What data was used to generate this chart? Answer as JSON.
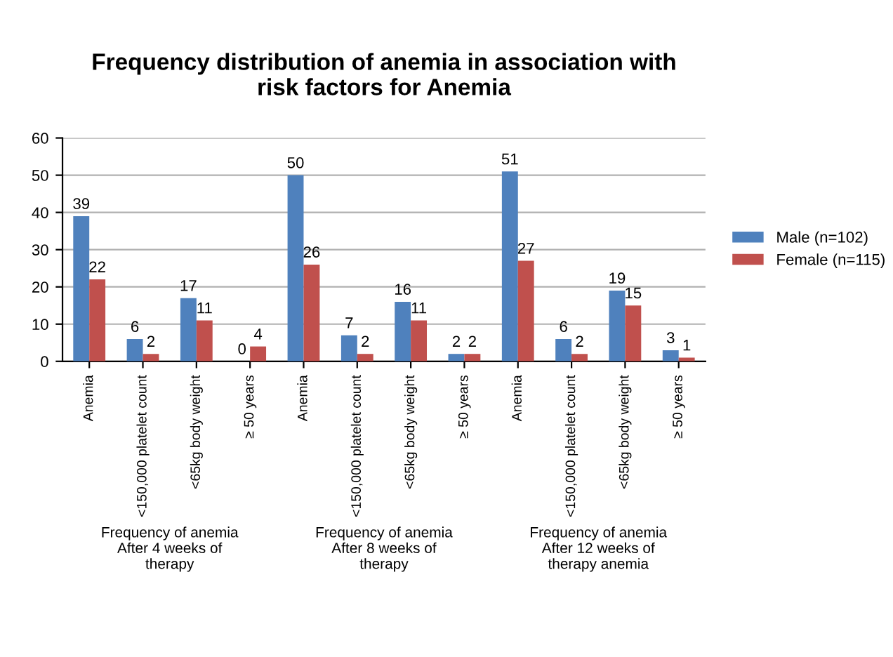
{
  "chart_data": {
    "type": "bar",
    "title": "Frequency distribution of anemia in association with\nrisk factors for Anemia",
    "categories": [
      "Anemia",
      "<150,000 platelet count",
      "<65kg body weight",
      "≥ 50 years",
      "Anemia",
      "<150,000 platelet count",
      "<65kg body weight",
      "≥ 50 years",
      "Anemia",
      "<150,000 platelet count",
      "<65kg body weight",
      "≥ 50 years"
    ],
    "series": [
      {
        "name": "Male (n=102)",
        "color": "#4f81bd",
        "values": [
          39,
          6,
          17,
          0,
          50,
          7,
          16,
          2,
          51,
          6,
          19,
          3
        ]
      },
      {
        "name": "Female (n=115)",
        "color": "#c0504d",
        "values": [
          22,
          2,
          11,
          4,
          26,
          2,
          11,
          2,
          27,
          2,
          15,
          1
        ]
      }
    ],
    "annotations": [
      "Frequency of anemia\nAfter 4 weeks of\ntherapy",
      "Frequency of anemia\nAfter 8 weeks of\ntherapy",
      "Frequency of anemia\nAfter 12 weeks of\ntherapy anemia"
    ],
    "ylim": [
      0,
      60
    ],
    "yticks": [
      0,
      10,
      20,
      30,
      40,
      50,
      60
    ],
    "grid": "y",
    "legend": "right",
    "data_labels": true
  }
}
